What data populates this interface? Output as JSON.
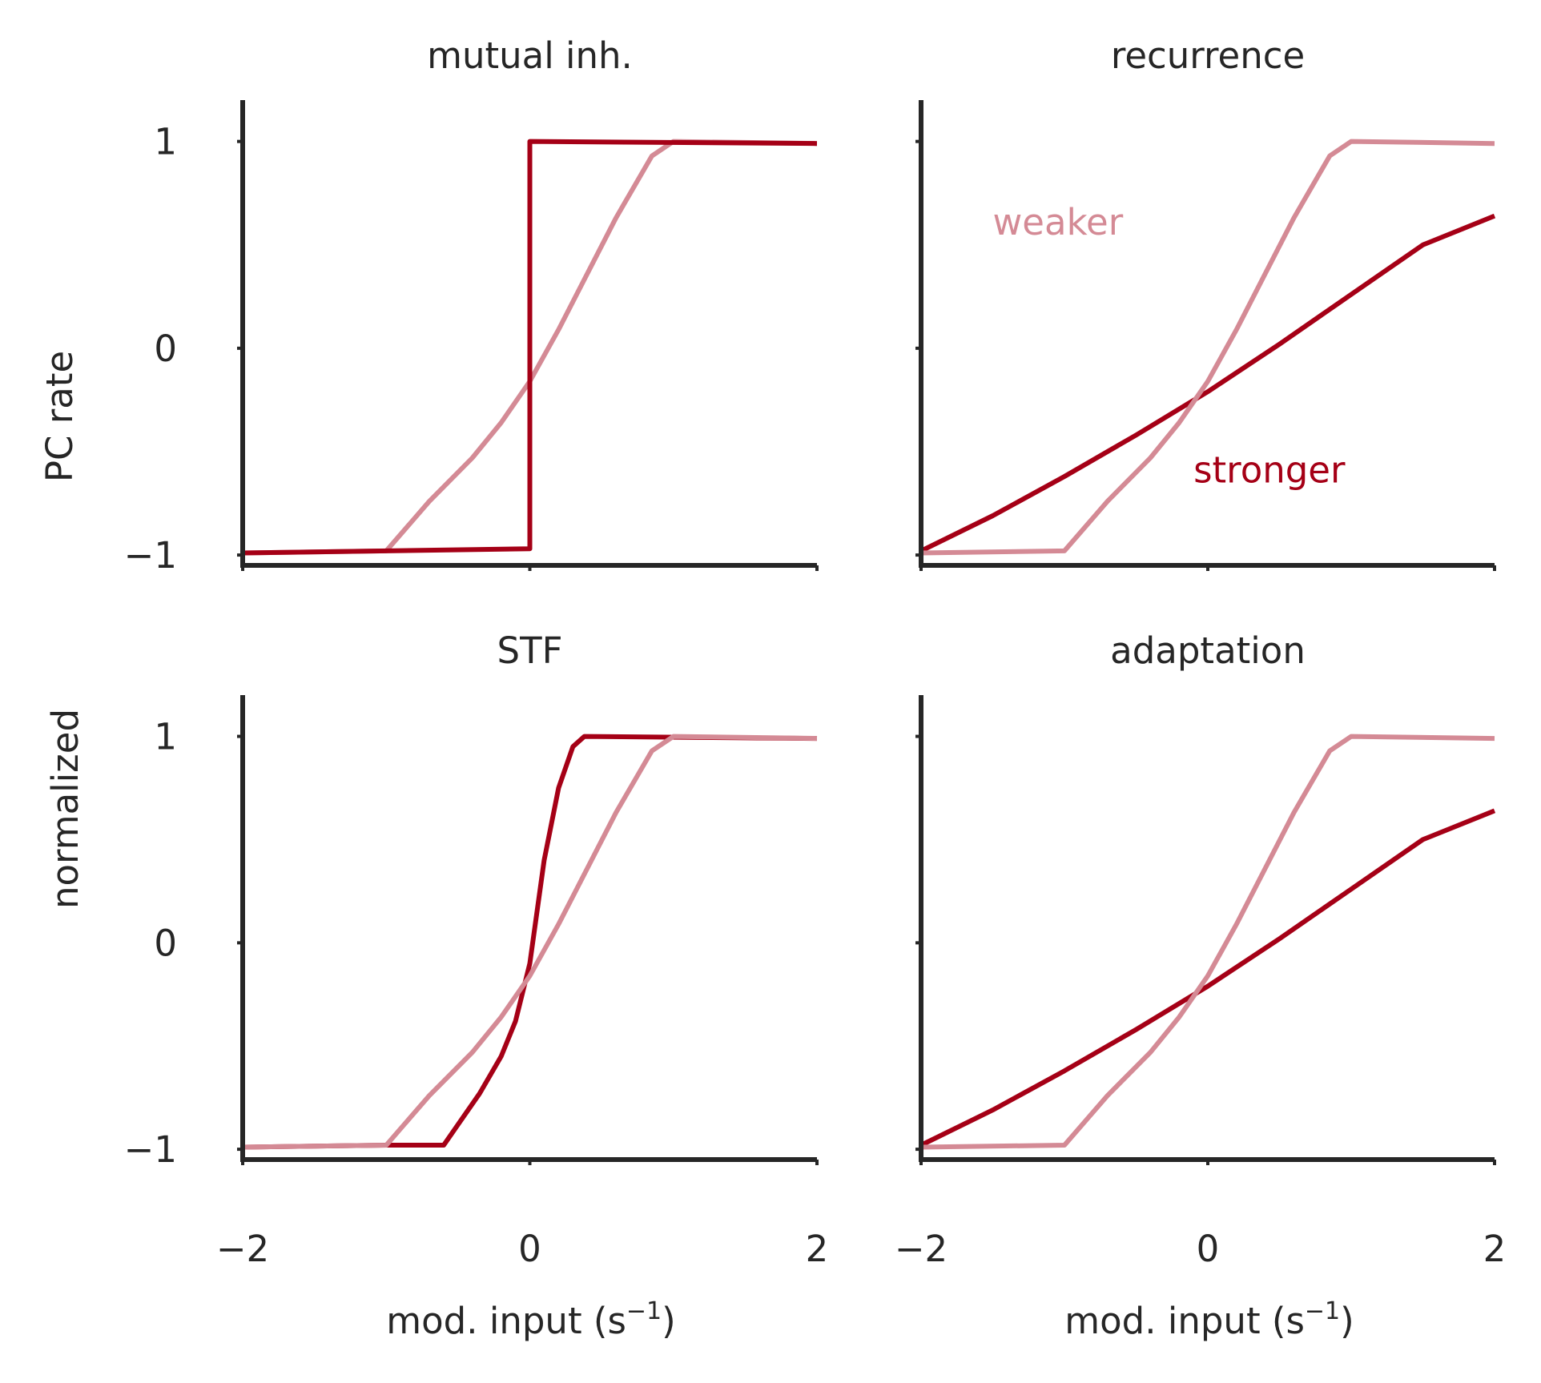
{
  "figure": {
    "ylabel_top": "PC rate",
    "ylabel_bottom": "normalized",
    "xlabel": "mod. input (s",
    "xlabel_exp": "−1",
    "xlabel_close": ")"
  },
  "colors": {
    "stronger": "#a50016",
    "weaker": "#d48a95",
    "axis": "#262626",
    "text": "#262626"
  },
  "chart_data": [
    {
      "type": "line",
      "title": "mutual inh.",
      "xlim": [
        -2,
        2
      ],
      "ylim": [
        -1.05,
        1.2
      ],
      "xticks": [
        -2,
        0,
        2
      ],
      "xtick_labels": [
        "",
        "",
        ""
      ],
      "yticks": [
        -1,
        0,
        1
      ],
      "ytick_labels": [
        "−1",
        "0",
        "1"
      ],
      "grid": false,
      "series": [
        {
          "key": "weaker",
          "x": [
            -2,
            -1.0,
            -0.7,
            -0.4,
            -0.2,
            0.0,
            0.2,
            0.4,
            0.6,
            0.85,
            1.0,
            2.0
          ],
          "y": [
            -0.99,
            -0.98,
            -0.74,
            -0.53,
            -0.36,
            -0.16,
            0.09,
            0.36,
            0.63,
            0.93,
            1.0,
            0.99
          ]
        },
        {
          "key": "stronger",
          "x": [
            -2,
            0.0,
            0.0,
            2.0
          ],
          "y": [
            -0.99,
            -0.97,
            1.0,
            0.99
          ]
        }
      ]
    },
    {
      "type": "line",
      "title": "recurrence",
      "xlim": [
        -2,
        2
      ],
      "ylim": [
        -1.05,
        1.2
      ],
      "xticks": [
        -2,
        0,
        2
      ],
      "xtick_labels": [
        "",
        "",
        ""
      ],
      "yticks": [
        -1,
        0,
        1
      ],
      "ytick_labels": [
        "",
        "",
        ""
      ],
      "grid": false,
      "annotations": [
        {
          "text": "weaker",
          "x": -1.5,
          "y": 0.55,
          "key": "weaker"
        },
        {
          "text": "stronger",
          "x": -0.1,
          "y": -0.65,
          "key": "stronger"
        }
      ],
      "series": [
        {
          "key": "stronger",
          "x": [
            -2,
            -1.5,
            -1.0,
            -0.5,
            0.0,
            0.5,
            1.0,
            1.5,
            2.0
          ],
          "y": [
            -0.98,
            -0.81,
            -0.62,
            -0.42,
            -0.21,
            0.02,
            0.26,
            0.5,
            0.64
          ]
        },
        {
          "key": "weaker",
          "x": [
            -2,
            -1.0,
            -0.7,
            -0.4,
            -0.2,
            0.0,
            0.2,
            0.4,
            0.6,
            0.85,
            1.0,
            2.0
          ],
          "y": [
            -0.99,
            -0.98,
            -0.74,
            -0.53,
            -0.36,
            -0.16,
            0.09,
            0.36,
            0.63,
            0.93,
            1.0,
            0.99
          ]
        }
      ]
    },
    {
      "type": "line",
      "title": "STF",
      "xlim": [
        -2,
        2
      ],
      "ylim": [
        -1.05,
        1.2
      ],
      "xticks": [
        -2,
        0,
        2
      ],
      "xtick_labels": [
        "−2",
        "0",
        "2"
      ],
      "yticks": [
        -1,
        0,
        1
      ],
      "ytick_labels": [
        "−1",
        "0",
        "1"
      ],
      "grid": false,
      "series": [
        {
          "key": "stronger",
          "x": [
            -2,
            -1.0,
            -0.6,
            -0.5,
            -0.35,
            -0.2,
            -0.1,
            0.0,
            0.1,
            0.2,
            0.3,
            0.38,
            2.0
          ],
          "y": [
            -0.99,
            -0.98,
            -0.98,
            -0.88,
            -0.73,
            -0.55,
            -0.38,
            -0.1,
            0.4,
            0.75,
            0.95,
            1.0,
            0.99
          ]
        },
        {
          "key": "weaker",
          "x": [
            -2,
            -1.0,
            -0.7,
            -0.4,
            -0.2,
            0.0,
            0.2,
            0.4,
            0.6,
            0.85,
            1.0,
            2.0
          ],
          "y": [
            -0.99,
            -0.98,
            -0.74,
            -0.53,
            -0.36,
            -0.16,
            0.09,
            0.36,
            0.63,
            0.93,
            1.0,
            0.99
          ]
        }
      ]
    },
    {
      "type": "line",
      "title": "adaptation",
      "xlim": [
        -2,
        2
      ],
      "ylim": [
        -1.05,
        1.2
      ],
      "xticks": [
        -2,
        0,
        2
      ],
      "xtick_labels": [
        "−2",
        "0",
        "2"
      ],
      "yticks": [
        -1,
        0,
        1
      ],
      "ytick_labels": [
        "",
        "",
        ""
      ],
      "grid": false,
      "series": [
        {
          "key": "stronger",
          "x": [
            -2,
            -1.5,
            -1.0,
            -0.5,
            0.0,
            0.5,
            1.0,
            1.5,
            2.0
          ],
          "y": [
            -0.98,
            -0.81,
            -0.62,
            -0.42,
            -0.21,
            0.02,
            0.26,
            0.5,
            0.64
          ]
        },
        {
          "key": "weaker",
          "x": [
            -2,
            -1.0,
            -0.7,
            -0.4,
            -0.2,
            0.0,
            0.2,
            0.4,
            0.6,
            0.85,
            1.0,
            2.0
          ],
          "y": [
            -0.99,
            -0.98,
            -0.74,
            -0.53,
            -0.36,
            -0.16,
            0.09,
            0.36,
            0.63,
            0.93,
            1.0,
            0.99
          ]
        }
      ]
    }
  ]
}
